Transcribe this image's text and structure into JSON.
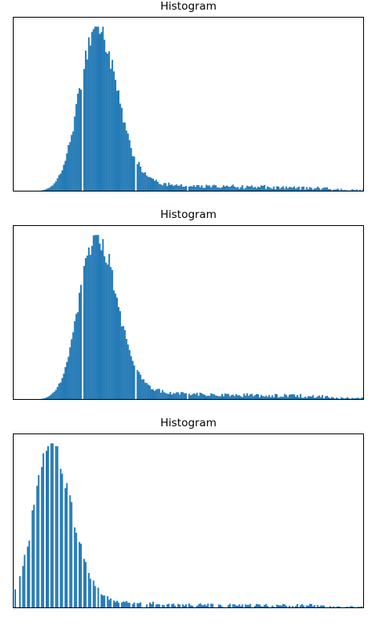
{
  "chart_data": [
    {
      "type": "bar",
      "title": "Histogram",
      "xlabel": "",
      "ylabel": "",
      "x_ticks": false,
      "y_ticks": false,
      "grid": false,
      "bar_color": "#1f77b4",
      "bins": 224,
      "xlim": [
        0,
        224
      ],
      "ylim": [
        0,
        1.05
      ],
      "shape": "unimodal peak near bin 53 with long right tail",
      "peak": {
        "bin": 53,
        "height": 1.0
      },
      "gap_bins": [
        44,
        78,
        111
      ],
      "empty_bin_fraction": 0.0,
      "tail_level": 0.02
    },
    {
      "type": "bar",
      "title": "Histogram",
      "xlabel": "",
      "ylabel": "",
      "x_ticks": false,
      "y_ticks": false,
      "grid": false,
      "bar_color": "#1f77b4",
      "bins": 224,
      "xlim": [
        0,
        224
      ],
      "ylim": [
        0,
        1.05
      ],
      "shape": "unimodal peak near bin 53 with long right tail",
      "peak": {
        "bin": 53,
        "height": 1.0
      },
      "gap_bins": [
        44,
        78,
        111
      ],
      "empty_bin_fraction": 0.0,
      "tail_level": 0.02
    },
    {
      "type": "bar",
      "title": "Histogram",
      "xlabel": "",
      "ylabel": "",
      "x_ticks": false,
      "y_ticks": false,
      "grid": false,
      "bar_color": "#1f77b4",
      "bins": 224,
      "xlim": [
        0,
        224
      ],
      "ylim": [
        0,
        1.05
      ],
      "shape": "comb-like unimodal peak near bin 24 with long right tail",
      "peak": {
        "bin": 24,
        "height": 1.0
      },
      "gap_bins": [],
      "empty_bin_fraction": 0.35,
      "tail_level": 0.015
    }
  ]
}
